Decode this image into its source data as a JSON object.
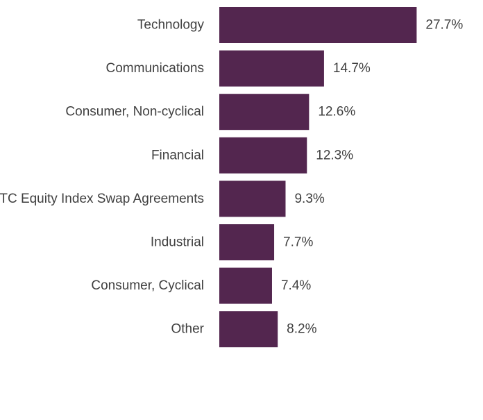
{
  "chart_data": {
    "type": "bar",
    "orientation": "horizontal",
    "categories": [
      "Technology",
      "Communications",
      "Consumer, Non-cyclical",
      "Financial",
      "OTC Equity Index Swap Agreements",
      "Industrial",
      "Consumer, Cyclical",
      "Other"
    ],
    "values": [
      27.7,
      14.7,
      12.6,
      12.3,
      9.3,
      7.7,
      7.4,
      8.2
    ],
    "value_labels": [
      "27.7%",
      "14.7%",
      "12.6%",
      "12.3%",
      "9.3%",
      "7.7%",
      "7.4%",
      "8.2%"
    ],
    "unit": "%",
    "xlim": [
      0,
      30
    ],
    "grid": false,
    "legend": "none",
    "bar_color": "#53264f",
    "text_color": "#3f3f3f"
  }
}
